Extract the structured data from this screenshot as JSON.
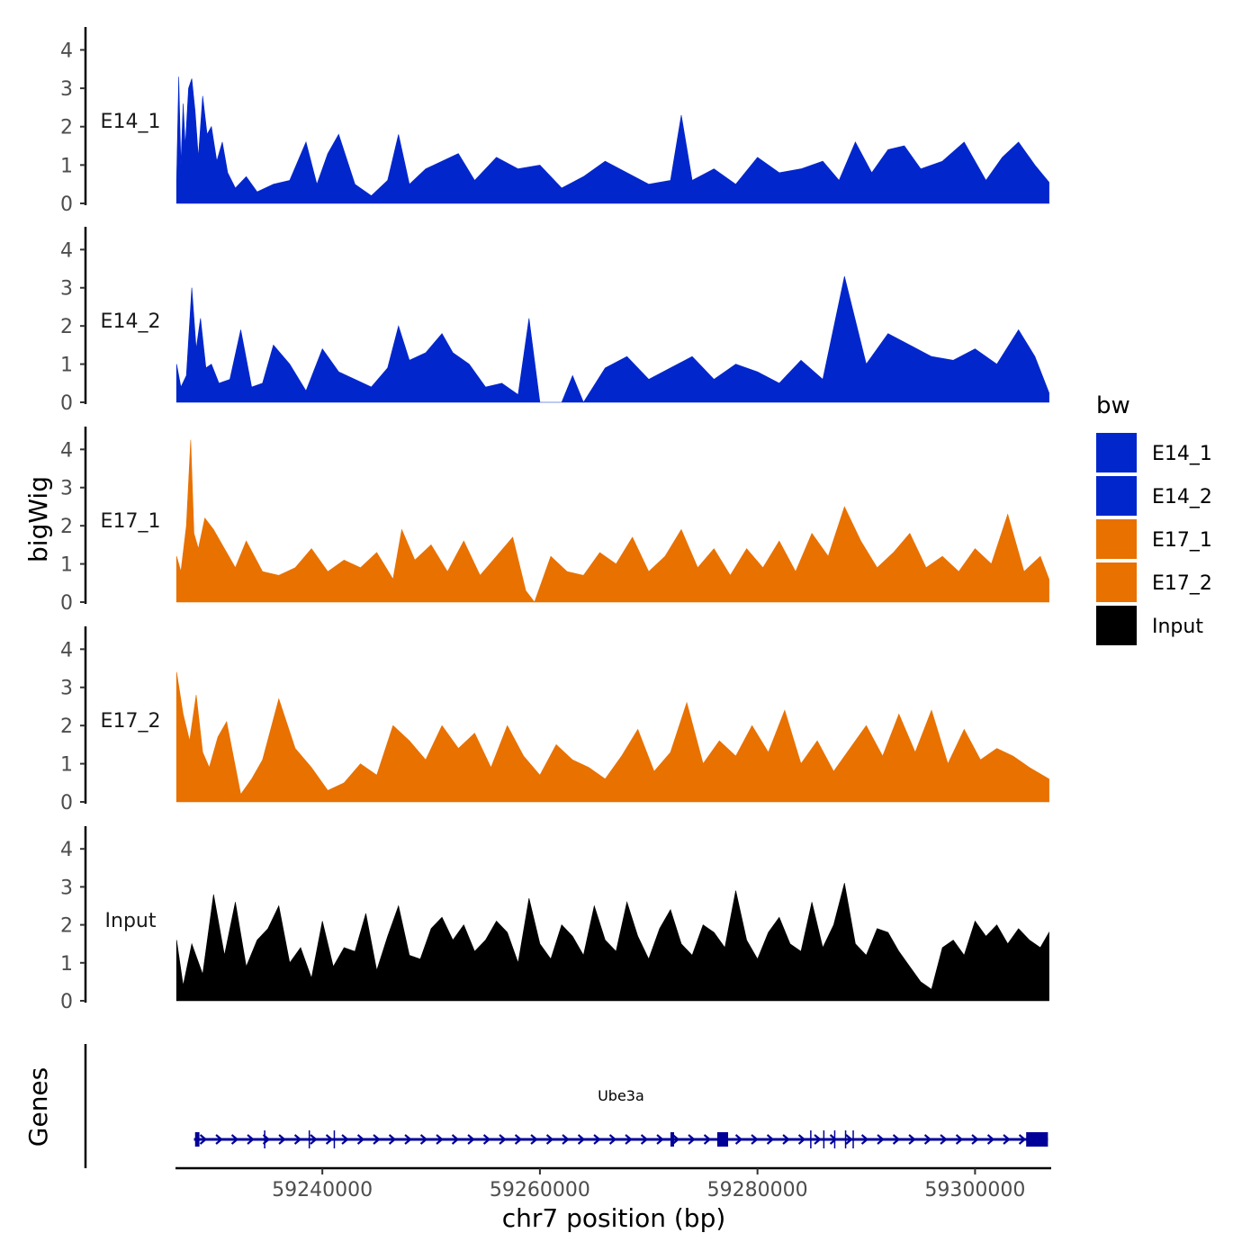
{
  "chart_data": {
    "type": "area",
    "ylabel": "bigWig",
    "xlabel": "chr7 position (bp)",
    "xlim": [
      59226500,
      59307000
    ],
    "ylim": [
      0,
      4.5
    ],
    "yticks": [
      "0",
      "1",
      "2",
      "3",
      "4"
    ],
    "xticks": [
      {
        "value": 59240000,
        "label": "59240000"
      },
      {
        "value": 59260000,
        "label": "59260000"
      },
      {
        "value": 59280000,
        "label": "59280000"
      },
      {
        "value": 59300000,
        "label": "59300000"
      }
    ],
    "series": [
      {
        "name": "E14_1",
        "color": "#0026CC",
        "x": [
          59226600,
          59226800,
          59227000,
          59227200,
          59227400,
          59227700,
          59228000,
          59228300,
          59228600,
          59229000,
          59229400,
          59229800,
          59230300,
          59230800,
          59231300,
          59232000,
          59233000,
          59234000,
          59235500,
          59237000,
          59238500,
          59239500,
          59240500,
          59241500,
          59243000,
          59244500,
          59246000,
          59247000,
          59248000,
          59249500,
          59251000,
          59252500,
          59254000,
          59256000,
          59258000,
          59260000,
          59262000,
          59264000,
          59266000,
          59268000,
          59270000,
          59272000,
          59273000,
          59274000,
          59276000,
          59278000,
          59280000,
          59282000,
          59284000,
          59286000,
          59287500,
          59289000,
          59290500,
          59292000,
          59293500,
          59295000,
          59297000,
          59299000,
          59301000,
          59302500,
          59304000,
          59305500,
          59306800
        ],
        "values": [
          0.6,
          3.3,
          1.0,
          2.6,
          1.5,
          3.0,
          3.25,
          2.4,
          1.2,
          2.8,
          1.8,
          2.0,
          1.1,
          1.6,
          0.8,
          0.4,
          0.7,
          0.3,
          0.5,
          0.6,
          1.6,
          0.5,
          1.3,
          1.8,
          0.5,
          0.2,
          0.6,
          1.8,
          0.5,
          0.9,
          1.1,
          1.3,
          0.6,
          1.2,
          0.9,
          1.0,
          0.4,
          0.7,
          1.1,
          0.8,
          0.5,
          0.6,
          2.3,
          0.6,
          0.9,
          0.5,
          1.2,
          0.8,
          0.9,
          1.1,
          0.6,
          1.6,
          0.8,
          1.4,
          1.5,
          0.9,
          1.1,
          1.6,
          0.6,
          1.2,
          1.6,
          1.0,
          0.55
        ]
      },
      {
        "name": "E14_2",
        "color": "#0026CC",
        "x": [
          59226600,
          59227000,
          59227500,
          59228000,
          59228400,
          59228800,
          59229300,
          59229800,
          59230500,
          59231500,
          59232500,
          59233500,
          59234500,
          59235500,
          59237000,
          59238500,
          59240000,
          59241500,
          59243000,
          59244500,
          59246000,
          59247000,
          59248000,
          59249500,
          59251000,
          59252000,
          59253500,
          59255000,
          59256500,
          59258000,
          59259000,
          59260000,
          59260800,
          59262000,
          59263000,
          59264000,
          59266000,
          59268000,
          59270000,
          59272000,
          59274000,
          59276000,
          59278000,
          59280000,
          59282000,
          59284000,
          59286000,
          59288000,
          59290000,
          59292000,
          59294000,
          59296000,
          59298000,
          59300000,
          59302000,
          59304000,
          59305500,
          59306800
        ],
        "values": [
          1.0,
          0.4,
          0.7,
          3.0,
          1.4,
          2.2,
          0.9,
          1.0,
          0.5,
          0.6,
          1.9,
          0.4,
          0.5,
          1.5,
          1.0,
          0.3,
          1.4,
          0.8,
          0.6,
          0.4,
          0.9,
          2.0,
          1.1,
          1.3,
          1.8,
          1.3,
          1.0,
          0.4,
          0.5,
          0.2,
          2.2,
          0.0,
          0.0,
          0.0,
          0.7,
          0.0,
          0.9,
          1.2,
          0.6,
          0.9,
          1.2,
          0.6,
          1.0,
          0.8,
          0.5,
          1.1,
          0.6,
          3.3,
          1.0,
          1.8,
          1.5,
          1.2,
          1.1,
          1.4,
          1.0,
          1.9,
          1.2,
          0.25
        ]
      },
      {
        "name": "E17_1",
        "color": "#E87100",
        "x": [
          59226600,
          59227000,
          59227500,
          59227900,
          59228200,
          59228600,
          59229200,
          59230000,
          59231000,
          59232000,
          59233000,
          59234500,
          59236000,
          59237500,
          59239000,
          59240500,
          59242000,
          59243500,
          59245000,
          59246500,
          59247300,
          59248500,
          59250000,
          59251500,
          59253000,
          59254500,
          59256000,
          59257500,
          59258700,
          59259500,
          59261000,
          59262500,
          59264000,
          59265500,
          59267000,
          59268500,
          59270000,
          59271500,
          59273000,
          59274500,
          59276000,
          59277500,
          59279000,
          59280500,
          59282000,
          59283500,
          59285000,
          59286500,
          59288000,
          59289500,
          59291000,
          59292500,
          59294000,
          59295500,
          59297000,
          59298500,
          59300000,
          59301500,
          59303000,
          59304500,
          59306000,
          59306800
        ],
        "values": [
          1.2,
          0.8,
          2.0,
          4.25,
          1.8,
          1.4,
          2.2,
          1.9,
          1.4,
          0.9,
          1.6,
          0.8,
          0.7,
          0.9,
          1.4,
          0.8,
          1.1,
          0.9,
          1.3,
          0.6,
          1.9,
          1.1,
          1.5,
          0.8,
          1.6,
          0.7,
          1.2,
          1.7,
          0.3,
          0.0,
          1.2,
          0.8,
          0.7,
          1.3,
          1.0,
          1.7,
          0.8,
          1.2,
          1.9,
          0.9,
          1.4,
          0.7,
          1.4,
          0.9,
          1.6,
          0.8,
          1.8,
          1.2,
          2.5,
          1.6,
          0.9,
          1.3,
          1.8,
          0.9,
          1.2,
          0.8,
          1.4,
          1.0,
          2.3,
          0.8,
          1.2,
          0.6
        ]
      },
      {
        "name": "E17_2",
        "color": "#E87100",
        "x": [
          59226600,
          59227200,
          59227800,
          59228400,
          59229000,
          59229600,
          59230400,
          59231200,
          59232500,
          59233500,
          59234500,
          59236000,
          59237500,
          59239000,
          59240500,
          59242000,
          59243500,
          59245000,
          59246500,
          59248000,
          59249500,
          59251000,
          59252500,
          59254000,
          59255500,
          59257000,
          59258500,
          59260000,
          59261500,
          59263000,
          59264500,
          59266000,
          59267500,
          59269000,
          59270500,
          59272000,
          59273500,
          59275000,
          59276500,
          59278000,
          59279500,
          59281000,
          59282500,
          59284000,
          59285500,
          59287000,
          59288500,
          59290000,
          59291500,
          59293000,
          59294500,
          59296000,
          59297500,
          59299000,
          59300500,
          59302000,
          59303500,
          59305000,
          59306800
        ],
        "values": [
          3.4,
          2.3,
          1.6,
          2.8,
          1.3,
          0.9,
          1.7,
          2.1,
          0.2,
          0.6,
          1.1,
          2.7,
          1.4,
          0.9,
          0.3,
          0.5,
          1.0,
          0.7,
          2.0,
          1.6,
          1.1,
          2.0,
          1.4,
          1.8,
          0.9,
          2.0,
          1.2,
          0.7,
          1.5,
          1.1,
          0.9,
          0.6,
          1.2,
          1.9,
          0.8,
          1.3,
          2.6,
          1.0,
          1.6,
          1.2,
          2.0,
          1.3,
          2.4,
          1.0,
          1.6,
          0.8,
          1.4,
          2.0,
          1.2,
          2.3,
          1.3,
          2.4,
          1.0,
          1.9,
          1.1,
          1.4,
          1.2,
          0.9,
          0.6
        ]
      },
      {
        "name": "Input",
        "color": "#000000",
        "x": [
          59226600,
          59227200,
          59228000,
          59229000,
          59230000,
          59231000,
          59232000,
          59233000,
          59234000,
          59235000,
          59236000,
          59237000,
          59238000,
          59239000,
          59240000,
          59241000,
          59242000,
          59243000,
          59244000,
          59245000,
          59246000,
          59247000,
          59248000,
          59249000,
          59250000,
          59251000,
          59252000,
          59253000,
          59254000,
          59255000,
          59256000,
          59257000,
          59258000,
          59259000,
          59260000,
          59261000,
          59262000,
          59263000,
          59264000,
          59265000,
          59266000,
          59267000,
          59268000,
          59269000,
          59270000,
          59271000,
          59272000,
          59273000,
          59274000,
          59275000,
          59276000,
          59277000,
          59278000,
          59279000,
          59280000,
          59281000,
          59282000,
          59283000,
          59284000,
          59285000,
          59286000,
          59287000,
          59288000,
          59289000,
          59290000,
          59291000,
          59292000,
          59293000,
          59294000,
          59295000,
          59296000,
          59297000,
          59298000,
          59299000,
          59300000,
          59301000,
          59302000,
          59303000,
          59304000,
          59305000,
          59306000,
          59306800
        ],
        "values": [
          1.6,
          0.4,
          1.5,
          0.7,
          2.8,
          1.2,
          2.6,
          0.9,
          1.6,
          1.9,
          2.5,
          1.0,
          1.4,
          0.6,
          2.1,
          0.9,
          1.4,
          1.3,
          2.3,
          0.8,
          1.7,
          2.5,
          1.2,
          1.1,
          1.9,
          2.2,
          1.6,
          2.0,
          1.3,
          1.6,
          2.1,
          1.8,
          1.0,
          2.7,
          1.5,
          1.1,
          2.0,
          1.7,
          1.2,
          2.5,
          1.6,
          1.3,
          2.6,
          1.7,
          1.1,
          1.9,
          2.4,
          1.5,
          1.2,
          2.0,
          1.8,
          1.4,
          2.9,
          1.6,
          1.1,
          1.8,
          2.2,
          1.5,
          1.3,
          2.6,
          1.4,
          2.0,
          3.1,
          1.5,
          1.2,
          1.9,
          1.8,
          1.3,
          0.9,
          0.5,
          0.3,
          1.4,
          1.6,
          1.2,
          2.1,
          1.7,
          2.0,
          1.5,
          1.9,
          1.6,
          1.4,
          1.8
        ]
      }
    ],
    "gene": {
      "name": "Ube3a",
      "start": 59228200,
      "end": 59306700,
      "strand": "+",
      "color": "#000099",
      "exons": [
        {
          "start": 59228300,
          "end": 59228700
        },
        {
          "start": 59272000,
          "end": 59272300
        },
        {
          "start": 59276300,
          "end": 59277300
        },
        {
          "start": 59304700,
          "end": 59306700
        }
      ],
      "junctions": [
        59234700,
        59238800,
        59241100,
        59284900,
        59286100,
        59287100,
        59288100,
        59288800
      ]
    },
    "genes_label": "Genes",
    "legend": {
      "title": "bw",
      "entries": [
        {
          "label": "E14_1",
          "color": "#0026CC"
        },
        {
          "label": "E14_2",
          "color": "#0026CC"
        },
        {
          "label": "E17_1",
          "color": "#E87100"
        },
        {
          "label": "E17_2",
          "color": "#E87100"
        },
        {
          "label": "Input",
          "color": "#000000"
        }
      ]
    }
  }
}
